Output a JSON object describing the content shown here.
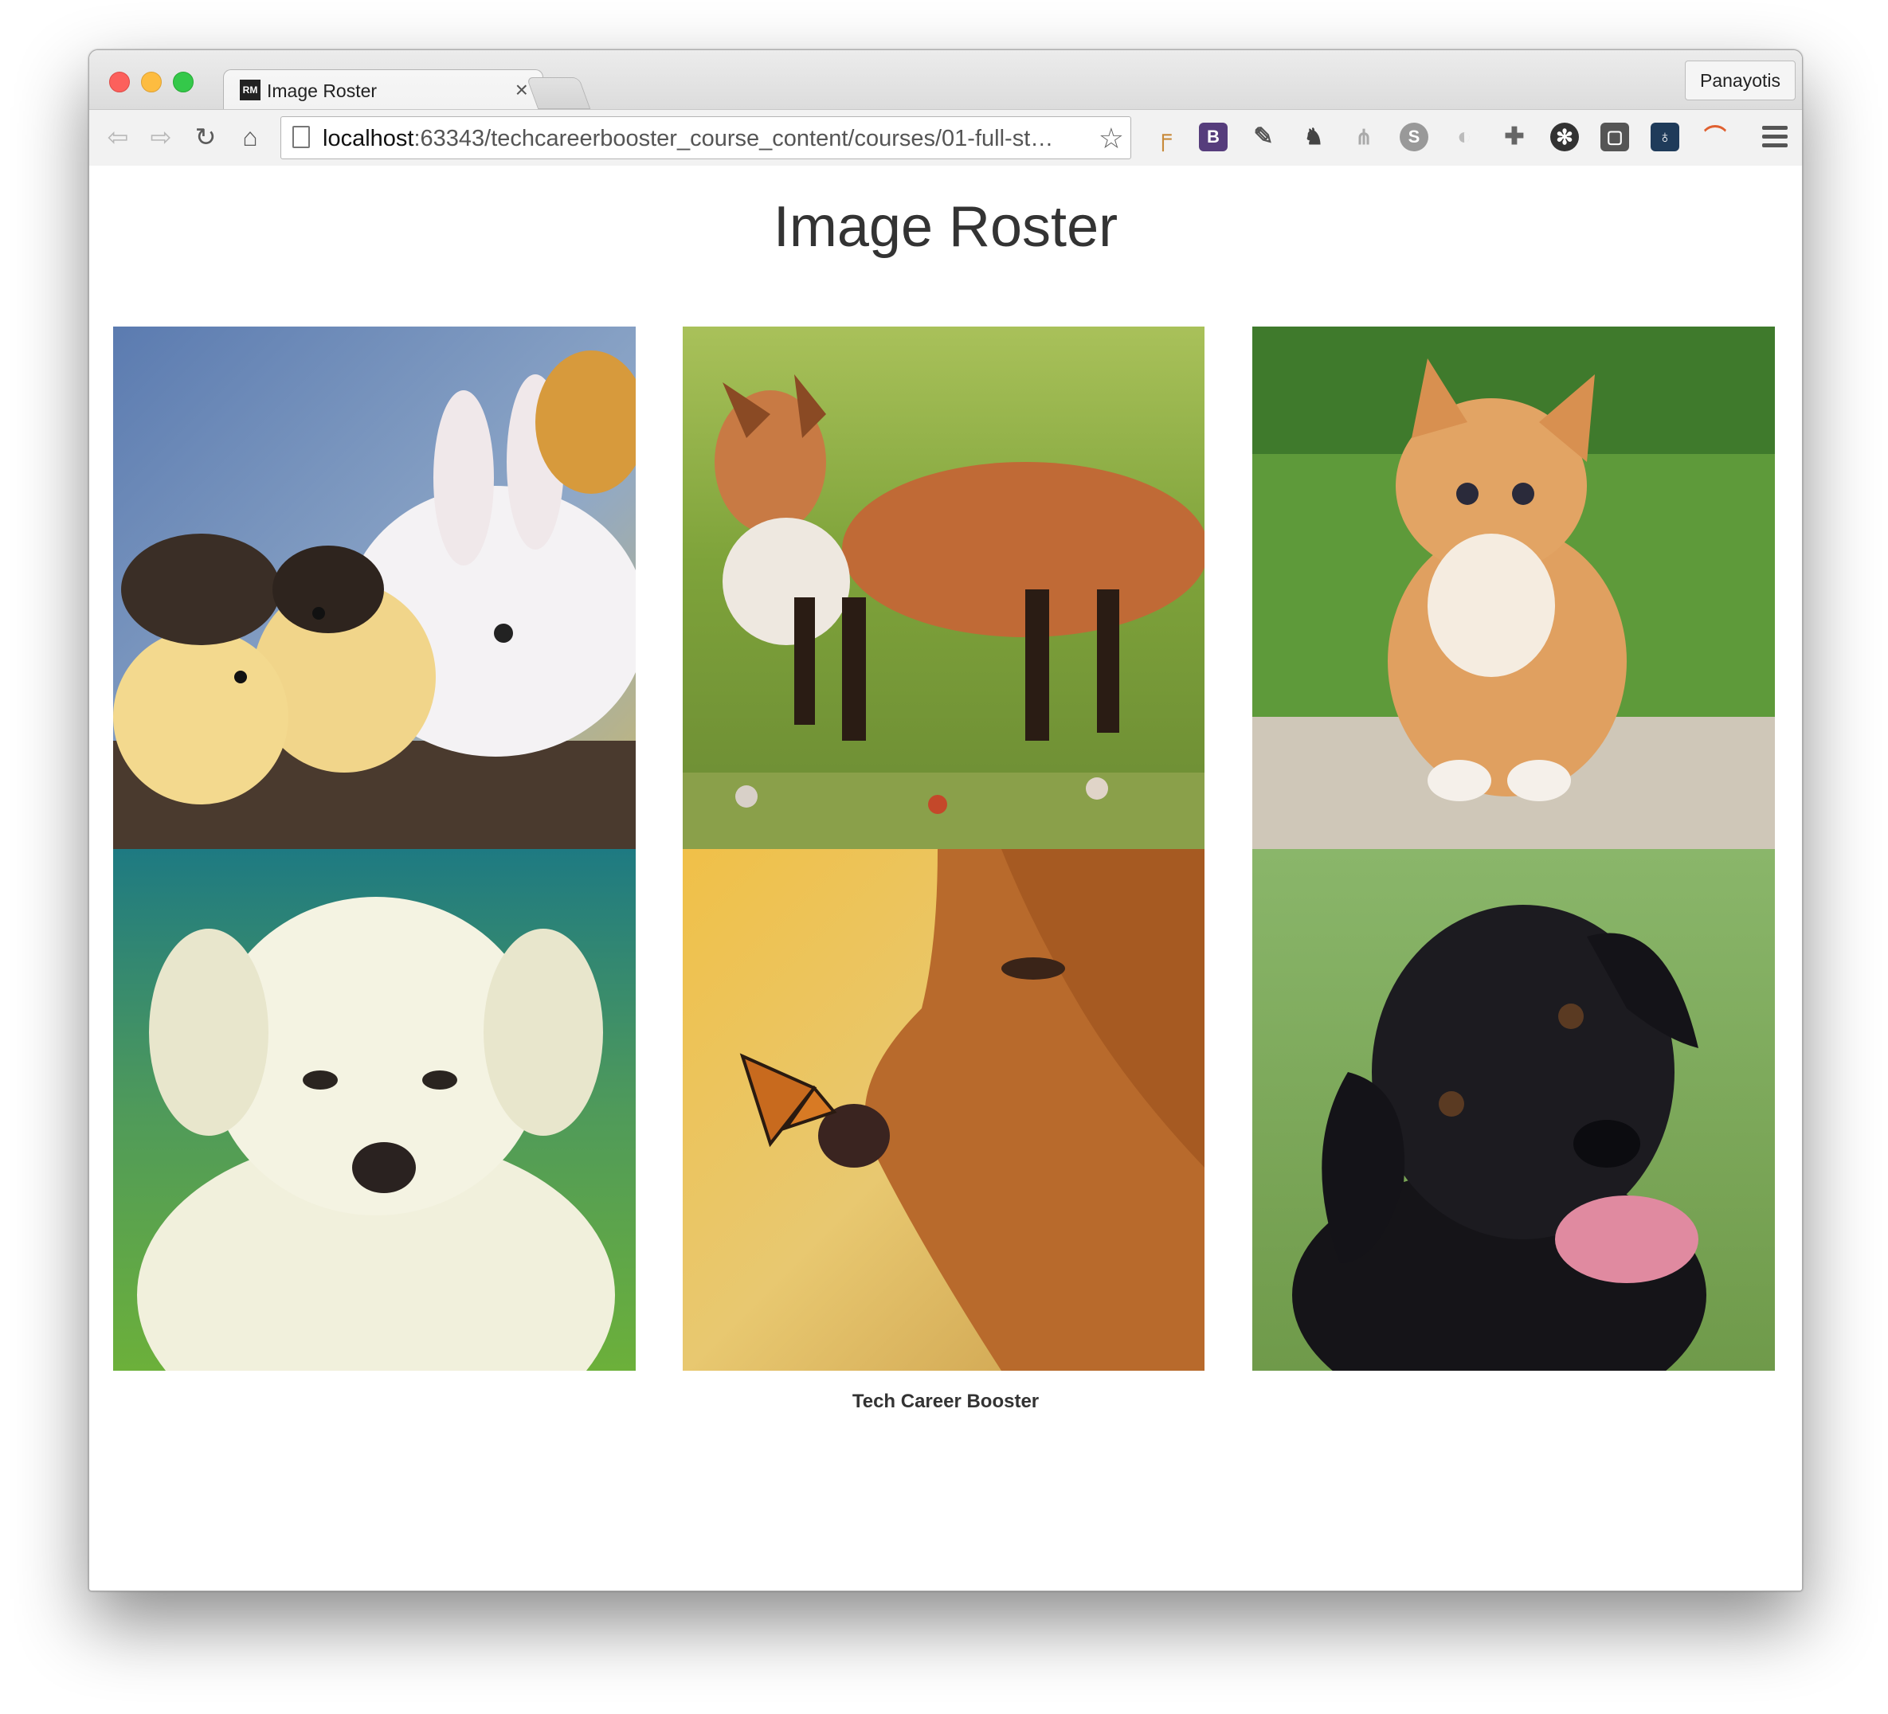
{
  "browser": {
    "tab_title": "Image Roster",
    "tab_favicon": "RM",
    "profile_name": "Panayotis",
    "url_host": "localhost",
    "url_rest": ":63343/techcareerbooster_course_content/courses/01-full-st…",
    "extension_icons": [
      "bookmark-icon",
      "bootstrap-icon",
      "eyedropper-icon",
      "evernote-icon",
      "sitemap-icon",
      "skype-icon",
      "swirl-icon",
      "puzzle-icon",
      "aperture-icon",
      "window-icon",
      "lock-icon",
      "rainbow-icon"
    ]
  },
  "page": {
    "title": "Image Roster",
    "footer": "Tech Career Booster"
  },
  "images": [
    {
      "subject": "chicks and rabbit"
    },
    {
      "subject": "fox"
    },
    {
      "subject": "kitten"
    },
    {
      "subject": "white puppy"
    },
    {
      "subject": "golden retriever with butterfly"
    },
    {
      "subject": "black labrador"
    }
  ]
}
